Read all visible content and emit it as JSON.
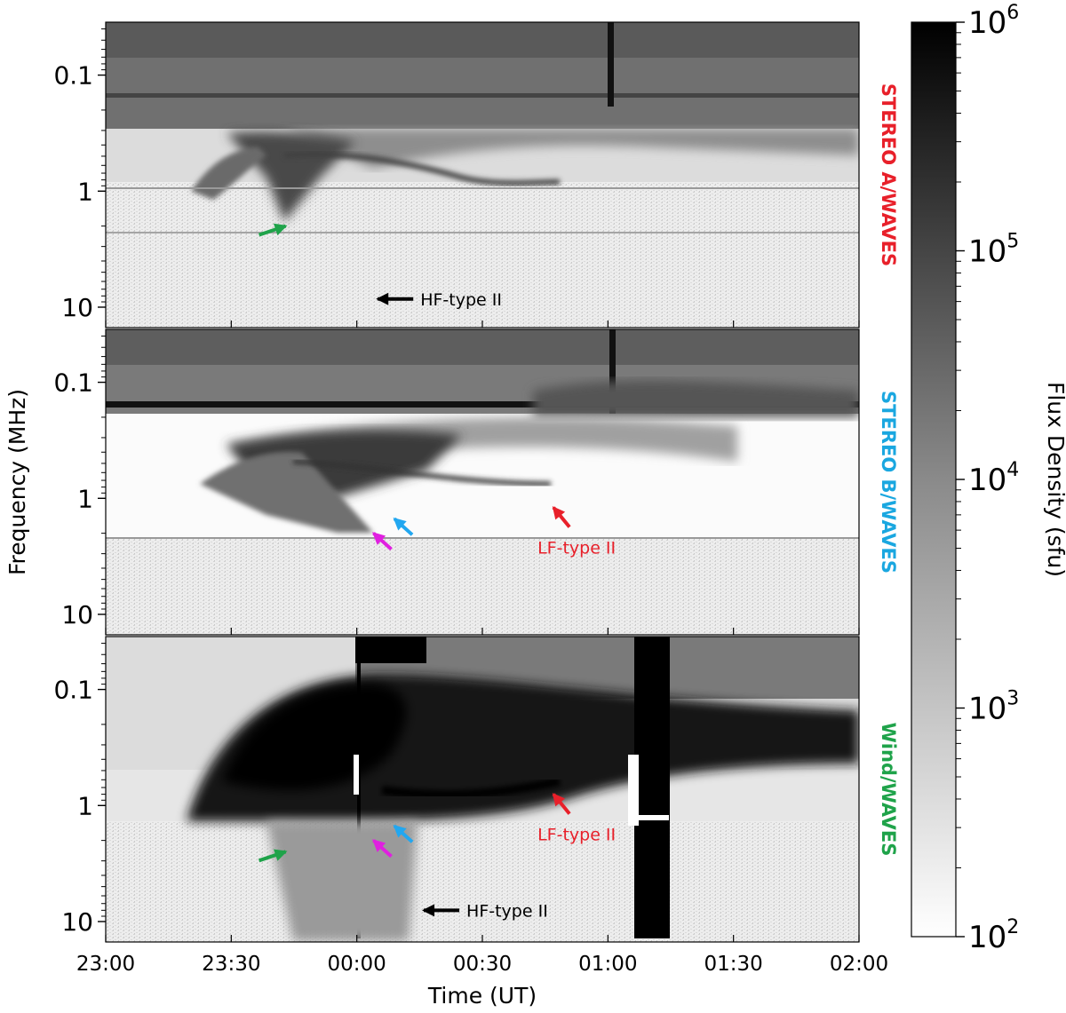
{
  "chart_data": {
    "type": "heatmap",
    "title": "",
    "xlabel": "Time (UT)",
    "ylabel": "Frequency (MHz)",
    "x_ticks": [
      "23:00",
      "23:30",
      "00:00",
      "00:30",
      "01:00",
      "01:30",
      "02:00"
    ],
    "x_range": [
      "23:00",
      "02:00"
    ],
    "y_scale": "log",
    "y_axis_inverted": true,
    "y_ticks": [
      "0.1",
      "1",
      "10"
    ],
    "panels": [
      {
        "name": "STEREO A/WAVES",
        "label_color": "#e8202a",
        "annotations": [
          {
            "text": "HF-type II",
            "color": "#000000",
            "time": "00:05",
            "freq_mhz": 8.5
          },
          {
            "text": "",
            "color": "#1fa34a",
            "time": "23:43",
            "freq_mhz": 2.0
          }
        ]
      },
      {
        "name": "STEREO B/WAVES",
        "label_color": "#1aa7e0",
        "annotations": [
          {
            "text": "LF-type II",
            "color": "#e8202a",
            "time": "00:47",
            "freq_mhz": 1.2
          },
          {
            "text": "",
            "color": "#22a7f0",
            "time": "00:09",
            "freq_mhz": 1.5
          },
          {
            "text": "",
            "color": "#e020e0",
            "time": "00:04",
            "freq_mhz": 2.0
          }
        ]
      },
      {
        "name": "Wind/WAVES",
        "label_color": "#1fa34a",
        "annotations": [
          {
            "text": "LF-type II",
            "color": "#e8202a",
            "time": "00:47",
            "freq_mhz": 0.8
          },
          {
            "text": "HF-type II",
            "color": "#000000",
            "time": "00:16",
            "freq_mhz": 8.0
          },
          {
            "text": "",
            "color": "#1fa34a",
            "time": "23:43",
            "freq_mhz": 2.5
          },
          {
            "text": "",
            "color": "#22a7f0",
            "time": "00:09",
            "freq_mhz": 1.5
          },
          {
            "text": "",
            "color": "#e020e0",
            "time": "00:04",
            "freq_mhz": 2.0
          }
        ]
      }
    ],
    "colorbar": {
      "label": "Flux Density (sfu)",
      "scale": "log",
      "range": [
        100,
        1000000
      ],
      "ticks": [
        {
          "base": "10",
          "exp": "2"
        },
        {
          "base": "10",
          "exp": "3"
        },
        {
          "base": "10",
          "exp": "4"
        },
        {
          "base": "10",
          "exp": "5"
        },
        {
          "base": "10",
          "exp": "6"
        }
      ],
      "colormap": "gray_r"
    }
  }
}
